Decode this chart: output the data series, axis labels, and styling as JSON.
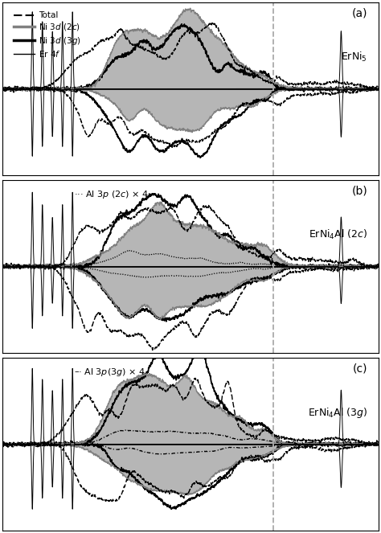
{
  "title_a": "ErNi$_5$",
  "title_b": "ErNi$_4$Al (2$c$)",
  "title_c": "ErNi$_4$Al (3$g$)",
  "label_a": "(a)",
  "label_b": "(b)",
  "label_c": "(c)",
  "extra_label_b": "Al 3$p$ (2$c$) $\\times$ 4",
  "extra_label_c": "Al 3$p$(3$g$) $\\times$ 4",
  "gray_fill": "#aaaaaa",
  "background": "#ffffff",
  "vline_color": "#aaaaaa",
  "xlim": [
    -10,
    5
  ],
  "ylim_a": [
    -4.5,
    4.5
  ],
  "ylim_b": [
    -3.5,
    3.5
  ],
  "ylim_c": [
    -4.0,
    4.0
  ],
  "fermi_x": 0.8,
  "er4f_pos": [
    -8.8,
    -8.4,
    -8.0,
    -7.6,
    -7.2,
    3.5
  ],
  "er4f_w": [
    0.025,
    0.025,
    0.025,
    0.025,
    0.025,
    0.035
  ]
}
